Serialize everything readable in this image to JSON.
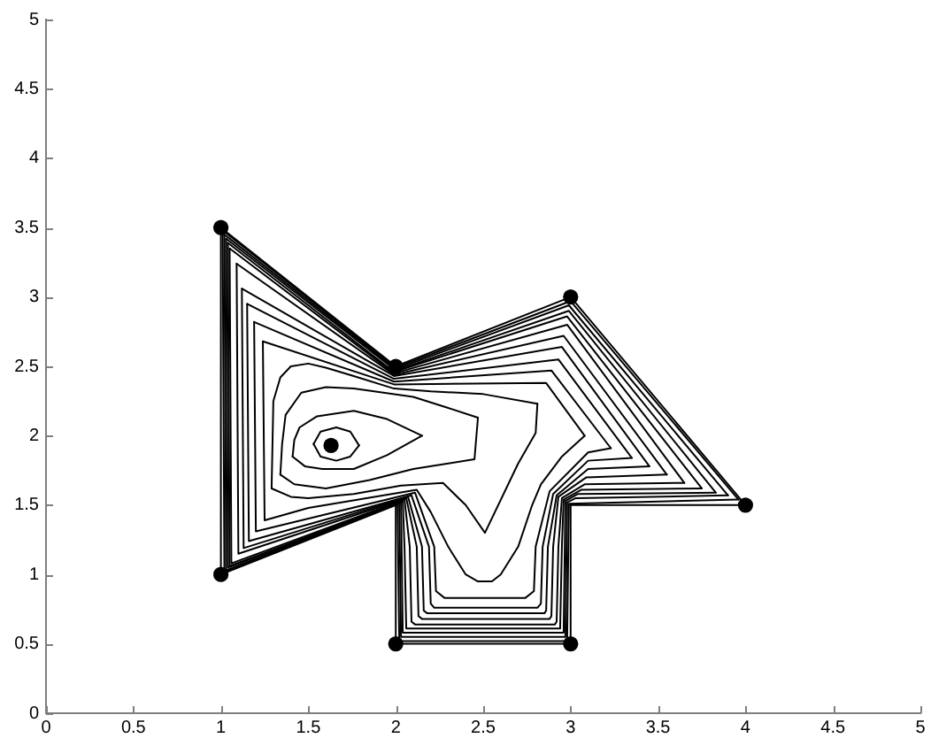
{
  "chart_data": {
    "type": "line",
    "xlim": [
      0,
      5
    ],
    "ylim": [
      0,
      5
    ],
    "xticks": [
      0,
      0.5,
      1,
      1.5,
      2,
      2.5,
      3,
      3.5,
      4,
      4.5,
      5
    ],
    "yticks": [
      0,
      0.5,
      1,
      1.5,
      2,
      2.5,
      3,
      3.5,
      4,
      4.5,
      5
    ],
    "series": [
      {
        "type": "line",
        "color": "#000000",
        "x": [
          1,
          2,
          3,
          4
        ],
        "values": [
          3.5,
          2.5,
          3,
          1.5
        ]
      },
      {
        "type": "line",
        "color": "#000000",
        "x": [
          1,
          1
        ],
        "values": [
          1,
          3.5
        ]
      },
      {
        "type": "line",
        "color": "#000000",
        "x": [
          1,
          2
        ],
        "values": [
          1,
          1.5
        ]
      },
      {
        "type": "line",
        "color": "#000000",
        "x": [
          2,
          2
        ],
        "values": [
          0.5,
          1.5
        ]
      },
      {
        "type": "line",
        "color": "#000000",
        "x": [
          2,
          3
        ],
        "values": [
          0.5,
          0.5
        ]
      },
      {
        "type": "line",
        "color": "#000000",
        "x": [
          3,
          3
        ],
        "values": [
          0.5,
          1.5
        ]
      },
      {
        "type": "line",
        "color": "#000000",
        "x": [
          3,
          4
        ],
        "values": [
          1.5,
          1.5
        ]
      },
      {
        "type": "line",
        "color": "#000000",
        "x": [
          1.01,
          2.0,
          3.0,
          3.96
        ],
        "values": [
          3.48,
          2.49,
          2.97,
          1.54
        ]
      },
      {
        "type": "line",
        "color": "#000000",
        "x": [
          1.01,
          1.02,
          2.01,
          2.02,
          2.98,
          2.99,
          3.96
        ],
        "values": [
          3.48,
          1.02,
          1.51,
          0.52,
          0.52,
          1.51,
          1.54
        ]
      },
      {
        "type": "line",
        "color": "#000000",
        "x": [
          1.02,
          2.0,
          2.99,
          3.9
        ],
        "values": [
          3.45,
          2.48,
          2.94,
          1.57
        ]
      },
      {
        "type": "line",
        "color": "#000000",
        "x": [
          1.02,
          1.03,
          2.02,
          2.03,
          2.97,
          2.98,
          3.03,
          3.9
        ],
        "values": [
          3.45,
          1.03,
          1.52,
          0.55,
          0.55,
          1.52,
          1.55,
          1.57
        ]
      },
      {
        "type": "line",
        "color": "#000000",
        "x": [
          1.03,
          2.0,
          2.99,
          3.83
        ],
        "values": [
          3.42,
          2.47,
          2.9,
          1.59
        ]
      },
      {
        "type": "line",
        "color": "#000000",
        "x": [
          1.03,
          1.04,
          2.03,
          2.04,
          2.96,
          2.97,
          3.04,
          3.83
        ],
        "values": [
          3.42,
          1.05,
          1.52,
          0.58,
          0.58,
          1.53,
          1.58,
          1.59
        ]
      },
      {
        "type": "line",
        "color": "#000000",
        "x": [
          1.04,
          1.99,
          2.98,
          3.75
        ],
        "values": [
          3.39,
          2.46,
          2.86,
          1.62
        ]
      },
      {
        "type": "line",
        "color": "#000000",
        "x": [
          1.04,
          1.05,
          2.04,
          2.05,
          2.06,
          2.94,
          2.95,
          2.96,
          3.06,
          3.75
        ],
        "values": [
          3.39,
          1.06,
          1.53,
          1.2,
          0.61,
          0.61,
          1.2,
          1.54,
          1.61,
          1.62
        ]
      },
      {
        "type": "line",
        "color": "#000000",
        "x": [
          1.05,
          1.99,
          2.98,
          3.65
        ],
        "values": [
          3.35,
          2.45,
          2.8,
          1.66
        ]
      },
      {
        "type": "line",
        "color": "#000000",
        "x": [
          1.05,
          1.06,
          2.05,
          2.08,
          2.09,
          2.11,
          2.91,
          2.92,
          2.93,
          2.95,
          3.08,
          3.65
        ],
        "values": [
          3.35,
          1.08,
          1.54,
          1.2,
          0.66,
          0.64,
          0.64,
          0.66,
          1.2,
          1.55,
          1.65,
          1.66
        ]
      },
      {
        "type": "line",
        "color": "#000000",
        "x": [
          1.09,
          1.99,
          2.96,
          3.55
        ],
        "values": [
          3.24,
          2.44,
          2.72,
          1.72
        ]
      },
      {
        "type": "line",
        "color": "#000000",
        "x": [
          1.09,
          1.1,
          2.06,
          2.12,
          2.13,
          2.15,
          2.88,
          2.89,
          2.9,
          2.93,
          3.09,
          3.55
        ],
        "values": [
          3.24,
          1.15,
          1.55,
          1.2,
          0.7,
          0.68,
          0.68,
          0.7,
          1.2,
          1.56,
          1.7,
          1.72
        ]
      },
      {
        "type": "line",
        "color": "#000000",
        "x": [
          1.12,
          1.99,
          2.95,
          3.45
        ],
        "values": [
          3.06,
          2.43,
          2.64,
          1.78
        ]
      },
      {
        "type": "line",
        "color": "#000000",
        "x": [
          1.12,
          1.13,
          2.07,
          2.15,
          2.16,
          2.18,
          2.85,
          2.86,
          2.87,
          2.92,
          3.1,
          3.45
        ],
        "values": [
          3.06,
          1.19,
          1.56,
          1.2,
          0.74,
          0.72,
          0.72,
          0.74,
          1.2,
          1.57,
          1.76,
          1.78
        ]
      },
      {
        "type": "line",
        "color": "#000000",
        "x": [
          1.15,
          1.99,
          2.93,
          3.35
        ],
        "values": [
          2.95,
          2.41,
          2.55,
          1.84
        ]
      },
      {
        "type": "line",
        "color": "#000000",
        "x": [
          1.15,
          1.16,
          2.09,
          2.19,
          2.2,
          2.22,
          2.81,
          2.83,
          2.84,
          2.9,
          3.1,
          3.35
        ],
        "values": [
          2.95,
          1.24,
          1.57,
          1.2,
          0.79,
          0.76,
          0.76,
          0.79,
          1.2,
          1.58,
          1.82,
          1.84
        ]
      },
      {
        "type": "line",
        "color": "#000000",
        "x": [
          1.19,
          1.99,
          2.89,
          3.23
        ],
        "values": [
          2.82,
          2.39,
          2.47,
          1.91
        ]
      },
      {
        "type": "line",
        "color": "#000000",
        "x": [
          1.19,
          1.2,
          2.11,
          2.22,
          2.23,
          2.28,
          2.74,
          2.79,
          2.8,
          2.88,
          3.1,
          3.23
        ],
        "values": [
          2.82,
          1.31,
          1.59,
          1.2,
          0.88,
          0.83,
          0.83,
          0.88,
          1.2,
          1.6,
          1.88,
          1.91
        ]
      },
      {
        "type": "line",
        "color": "#000000",
        "x": [
          1.24,
          1.99,
          2.86,
          3.08
        ],
        "values": [
          2.68,
          2.37,
          2.38,
          2.0
        ]
      },
      {
        "type": "line",
        "color": "#000000",
        "x": [
          1.24,
          1.25,
          1.5,
          2.12,
          2.2,
          2.3,
          2.4,
          2.47,
          2.55,
          2.6,
          2.7,
          2.78,
          2.83,
          2.95,
          3.08
        ],
        "values": [
          2.68,
          1.39,
          1.48,
          1.61,
          1.45,
          1.2,
          1.0,
          0.95,
          0.95,
          1.0,
          1.2,
          1.5,
          1.65,
          1.85,
          2.0
        ]
      },
      {
        "type": "line",
        "color": "#000000",
        "x": [
          1.29,
          1.3,
          1.34,
          1.4,
          1.5,
          1.6,
          1.76,
          1.99,
          2.2,
          2.5,
          2.81
        ],
        "values": [
          1.62,
          2.25,
          2.42,
          2.5,
          2.52,
          2.49,
          2.43,
          2.34,
          2.32,
          2.3,
          2.23
        ]
      },
      {
        "type": "line",
        "color": "#000000",
        "x": [
          1.29,
          1.4,
          1.5,
          1.76,
          2.03,
          2.27,
          2.4,
          2.51,
          2.7,
          2.8,
          2.81
        ],
        "values": [
          1.62,
          1.56,
          1.55,
          1.58,
          1.64,
          1.66,
          1.5,
          1.3,
          1.8,
          2.02,
          2.23
        ]
      },
      {
        "type": "line",
        "color": "#000000",
        "x": [
          1.34,
          1.35,
          1.37,
          1.46,
          1.6,
          1.76,
          2.1,
          2.3,
          2.47
        ],
        "values": [
          1.72,
          1.94,
          2.15,
          2.31,
          2.35,
          2.34,
          2.28,
          2.2,
          2.13
        ]
      },
      {
        "type": "line",
        "color": "#000000",
        "x": [
          1.34,
          1.42,
          1.6,
          1.85,
          2.1,
          2.3,
          2.45,
          2.46,
          2.47
        ],
        "values": [
          1.72,
          1.65,
          1.62,
          1.68,
          1.76,
          1.8,
          1.83,
          1.98,
          2.13
        ]
      },
      {
        "type": "line",
        "color": "#000000",
        "x": [
          1.41,
          1.42,
          1.45,
          1.55,
          1.76,
          1.95,
          2.15
        ],
        "values": [
          1.85,
          1.97,
          2.06,
          2.14,
          2.18,
          2.12,
          2.0
        ]
      },
      {
        "type": "line",
        "color": "#000000",
        "x": [
          1.41,
          1.48,
          1.58,
          1.76,
          1.95,
          2.15
        ],
        "values": [
          1.85,
          1.78,
          1.76,
          1.76,
          1.86,
          2.0
        ]
      },
      {
        "type": "line",
        "color": "#000000",
        "x": [
          1.53,
          1.57,
          1.66,
          1.74,
          1.79
        ],
        "values": [
          1.94,
          2.03,
          2.06,
          2.03,
          1.93
        ]
      },
      {
        "type": "line",
        "color": "#000000",
        "x": [
          1.53,
          1.57,
          1.66,
          1.74,
          1.79
        ],
        "values": [
          1.94,
          1.85,
          1.82,
          1.85,
          1.93
        ]
      },
      {
        "type": "scatter",
        "marker": "circle",
        "color": "#000000",
        "x": [
          1,
          1,
          2,
          3,
          4,
          3,
          2
        ],
        "values": [
          1,
          3.5,
          2.5,
          3,
          1.5,
          0.5,
          0.5
        ]
      },
      {
        "type": "scatter",
        "marker": "circle",
        "color": "#000000",
        "x": [
          1.63
        ],
        "values": [
          1.93
        ]
      }
    ]
  }
}
